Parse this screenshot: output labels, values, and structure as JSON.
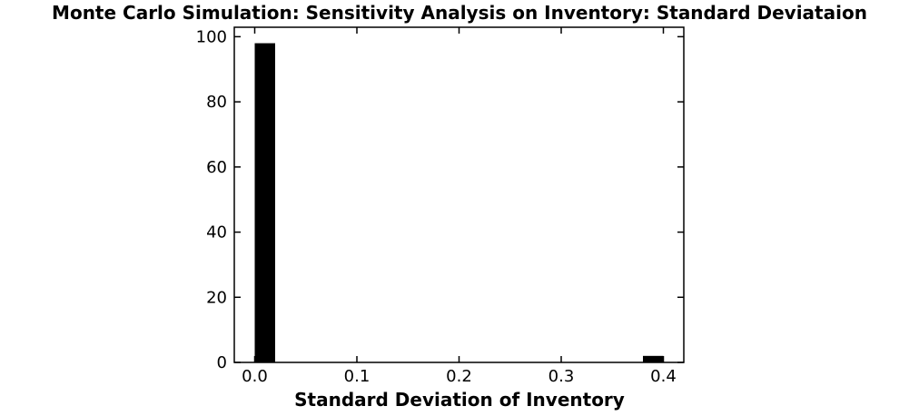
{
  "chart_data": {
    "type": "histogram",
    "title": "Monte Carlo Simulation: Sensitivity Analysis on Inventory: Standard Deviataion",
    "x_label": "Standard Deviation of Inventory",
    "bins": [
      0,
      0.02,
      0.04,
      0.06,
      0.08,
      0.1,
      0.12,
      0.14,
      0.16,
      0.18,
      0.2,
      0.22,
      0.24,
      0.26,
      0.28,
      0.3,
      0.32,
      0.34,
      0.36,
      0.38,
      0.4
    ],
    "values": [
      98,
      0,
      0,
      0,
      0,
      0,
      0,
      0,
      0,
      0,
      0,
      0,
      0,
      0,
      0,
      0,
      0,
      0,
      0,
      2
    ],
    "color": "#000000",
    "xlim": [
      -0.02,
      0.42
    ],
    "xticks": [
      {
        "value": 0,
        "label": "0.0"
      },
      0.1,
      0.2,
      0.3,
      0.4
    ],
    "ylim": [
      0,
      102.9
    ],
    "yticks": [
      0,
      20,
      40,
      60,
      80,
      100
    ]
  }
}
